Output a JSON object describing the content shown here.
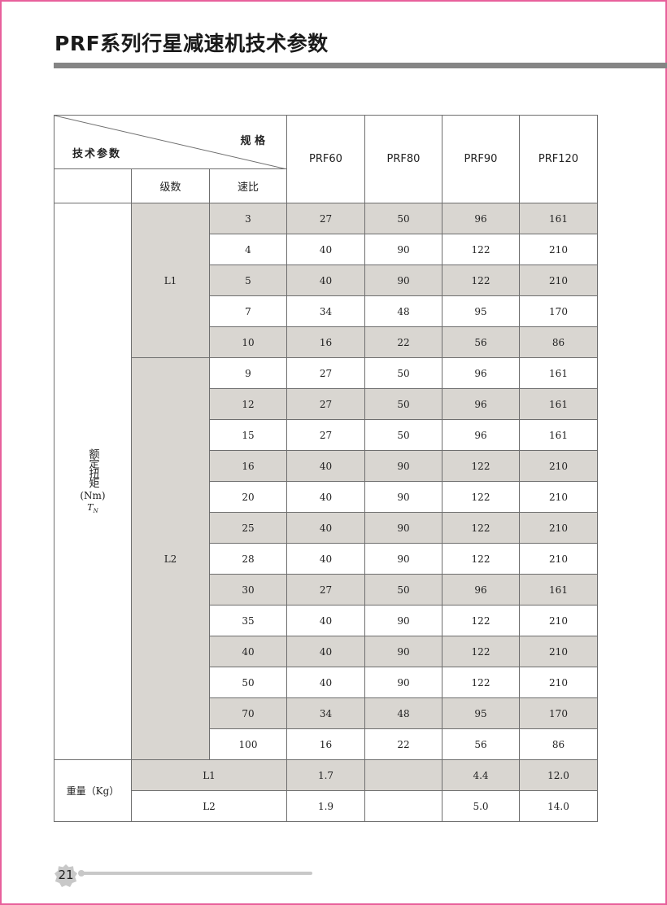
{
  "title": "PRF系列行星减速机技术参数",
  "page_number": "21",
  "colors": {
    "accent_border": "#e8609c",
    "title_bar": "#858585",
    "row_shade": "#d9d6d1"
  },
  "table": {
    "corner_top": "规 格",
    "corner_bottom": "技术参数",
    "col_stage": "级数",
    "col_ratio": "速比",
    "models": [
      "PRF60",
      "PRF80",
      "PRF90",
      "PRF120"
    ],
    "torque_label": "额定扭矩",
    "torque_unit": "(Nm)",
    "torque_symbol": "T",
    "torque_symbol_sub": "N",
    "groups": [
      {
        "stage": "L1",
        "rows": [
          {
            "ratio": "3",
            "values": [
              "27",
              "50",
              "96",
              "161"
            ]
          },
          {
            "ratio": "4",
            "values": [
              "40",
              "90",
              "122",
              "210"
            ]
          },
          {
            "ratio": "5",
            "values": [
              "40",
              "90",
              "122",
              "210"
            ]
          },
          {
            "ratio": "7",
            "values": [
              "34",
              "48",
              "95",
              "170"
            ]
          },
          {
            "ratio": "10",
            "values": [
              "16",
              "22",
              "56",
              "86"
            ]
          }
        ]
      },
      {
        "stage": "L2",
        "rows": [
          {
            "ratio": "9",
            "values": [
              "27",
              "50",
              "96",
              "161"
            ]
          },
          {
            "ratio": "12",
            "values": [
              "27",
              "50",
              "96",
              "161"
            ]
          },
          {
            "ratio": "15",
            "values": [
              "27",
              "50",
              "96",
              "161"
            ]
          },
          {
            "ratio": "16",
            "values": [
              "40",
              "90",
              "122",
              "210"
            ]
          },
          {
            "ratio": "20",
            "values": [
              "40",
              "90",
              "122",
              "210"
            ]
          },
          {
            "ratio": "25",
            "values": [
              "40",
              "90",
              "122",
              "210"
            ]
          },
          {
            "ratio": "28",
            "values": [
              "40",
              "90",
              "122",
              "210"
            ]
          },
          {
            "ratio": "30",
            "values": [
              "27",
              "50",
              "96",
              "161"
            ]
          },
          {
            "ratio": "35",
            "values": [
              "40",
              "90",
              "122",
              "210"
            ]
          },
          {
            "ratio": "40",
            "values": [
              "40",
              "90",
              "122",
              "210"
            ]
          },
          {
            "ratio": "50",
            "values": [
              "40",
              "90",
              "122",
              "210"
            ]
          },
          {
            "ratio": "70",
            "values": [
              "34",
              "48",
              "95",
              "170"
            ]
          },
          {
            "ratio": "100",
            "values": [
              "16",
              "22",
              "56",
              "86"
            ]
          }
        ]
      }
    ],
    "weight_label": "重量（Kg）",
    "weight_rows": [
      {
        "stage": "L1",
        "values": [
          "1.7",
          "",
          "4.4",
          "12.0"
        ]
      },
      {
        "stage": "L2",
        "values": [
          "1.9",
          "",
          "5.0",
          "14.0"
        ]
      }
    ]
  }
}
